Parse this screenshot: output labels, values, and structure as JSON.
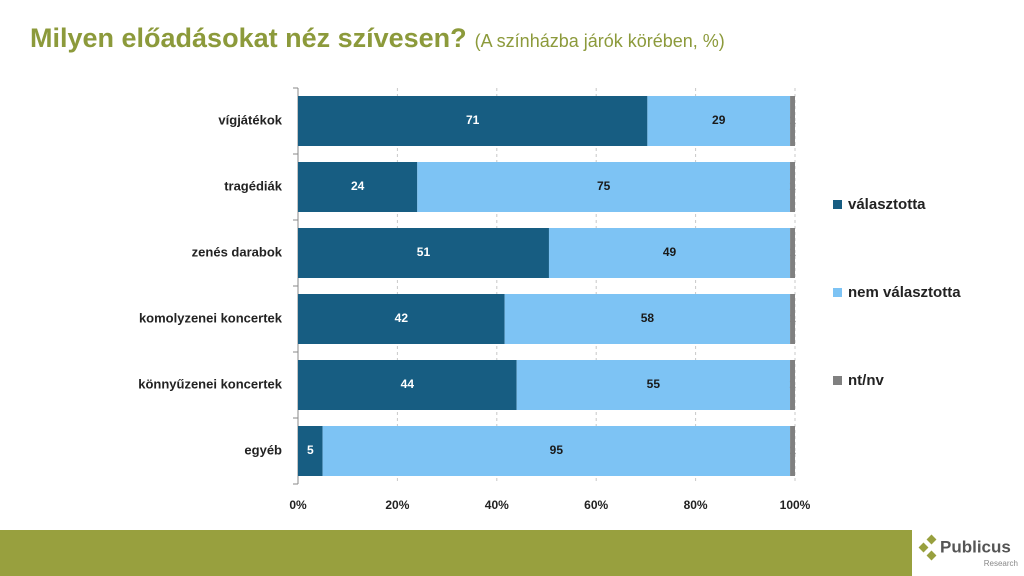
{
  "chart_data": {
    "type": "stacked-bar-horizontal",
    "stacking": "percent",
    "title": "Milyen előadásokat néz szívesen?",
    "subtitle": "(A színházba járók körében, %)",
    "categories": [
      "vígjátékok",
      "tragédiák",
      "zenés darabok",
      "komolyzenei koncertek",
      "könnyűzenei koncertek",
      "egyéb"
    ],
    "series": [
      {
        "name": "választotta",
        "color": "#175d82",
        "label_color": "#ffffff",
        "values": [
          71,
          24,
          51,
          42,
          44,
          5
        ]
      },
      {
        "name": "nem választotta",
        "color": "#7dc3f4",
        "label_color": "#1a1a1a",
        "values": [
          29,
          75,
          49,
          58,
          55,
          95
        ]
      },
      {
        "name": "nt/nv",
        "color": "#808080",
        "label_color": "#808080",
        "values": [
          1,
          1,
          1,
          1,
          1,
          1
        ]
      }
    ],
    "xlim": [
      0,
      100
    ],
    "xticks": [
      {
        "value": 0,
        "label": "0%"
      },
      {
        "value": 20,
        "label": "20%"
      },
      {
        "value": 40,
        "label": "40%"
      },
      {
        "value": 60,
        "label": "60%"
      },
      {
        "value": 80,
        "label": "80%"
      },
      {
        "value": 100,
        "label": "100%"
      }
    ],
    "grid": true,
    "legend": "right"
  },
  "footer": {
    "brand": "Publicus",
    "sub": "Research"
  }
}
